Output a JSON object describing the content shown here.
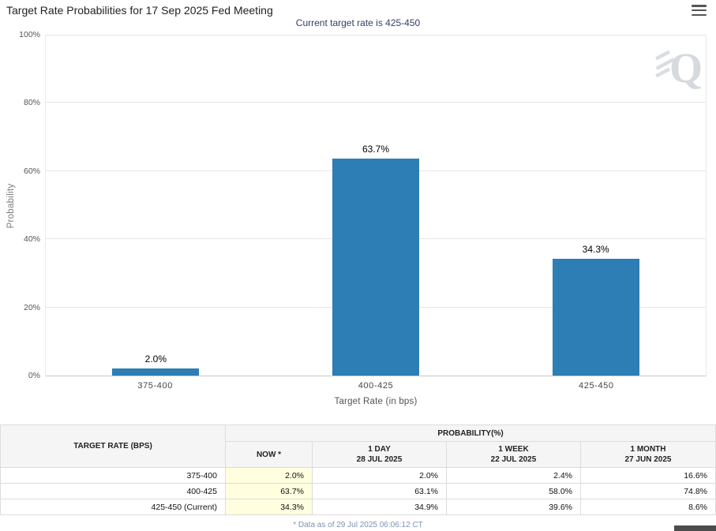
{
  "header": {
    "title": "Target Rate Probabilities for 17 Sep 2025 Fed Meeting"
  },
  "chart_data": {
    "type": "bar",
    "title": "Current target rate is 425-450",
    "categories": [
      "375-400",
      "400-425",
      "425-450"
    ],
    "values": [
      2.0,
      63.7,
      34.3
    ],
    "labels": [
      "2.0%",
      "63.7%",
      "34.3%"
    ],
    "xlabel": "Target Rate (in bps)",
    "ylabel": "Probability",
    "ylim": [
      0,
      100
    ],
    "yticks": [
      "0%",
      "20%",
      "40%",
      "60%",
      "80%",
      "100%"
    ],
    "grid": true,
    "legend": false,
    "bar_color": "#2d7eb5",
    "watermark": "Q"
  },
  "table": {
    "row_header": "TARGET RATE (BPS)",
    "col_group_header": "PROBABILITY(%)",
    "now_highlight_color": "#ffffe0",
    "sub_headers": [
      {
        "label": "NOW *",
        "date": ""
      },
      {
        "label": "1 DAY",
        "date": "28 JUL 2025"
      },
      {
        "label": "1 WEEK",
        "date": "22 JUL 2025"
      },
      {
        "label": "1 MONTH",
        "date": "27 JUN 2025"
      }
    ],
    "rows": [
      {
        "rate": "375-400",
        "now": "2.0%",
        "day": "2.0%",
        "week": "2.4%",
        "month": "16.6%"
      },
      {
        "rate": "400-425",
        "now": "63.7%",
        "day": "63.1%",
        "week": "58.0%",
        "month": "74.8%"
      },
      {
        "rate": "425-450 (Current)",
        "now": "34.3%",
        "day": "34.9%",
        "week": "39.6%",
        "month": "8.6%"
      }
    ]
  },
  "footer": {
    "note": "* Data as of 29 Jul 2025 06:06:12 CT"
  }
}
